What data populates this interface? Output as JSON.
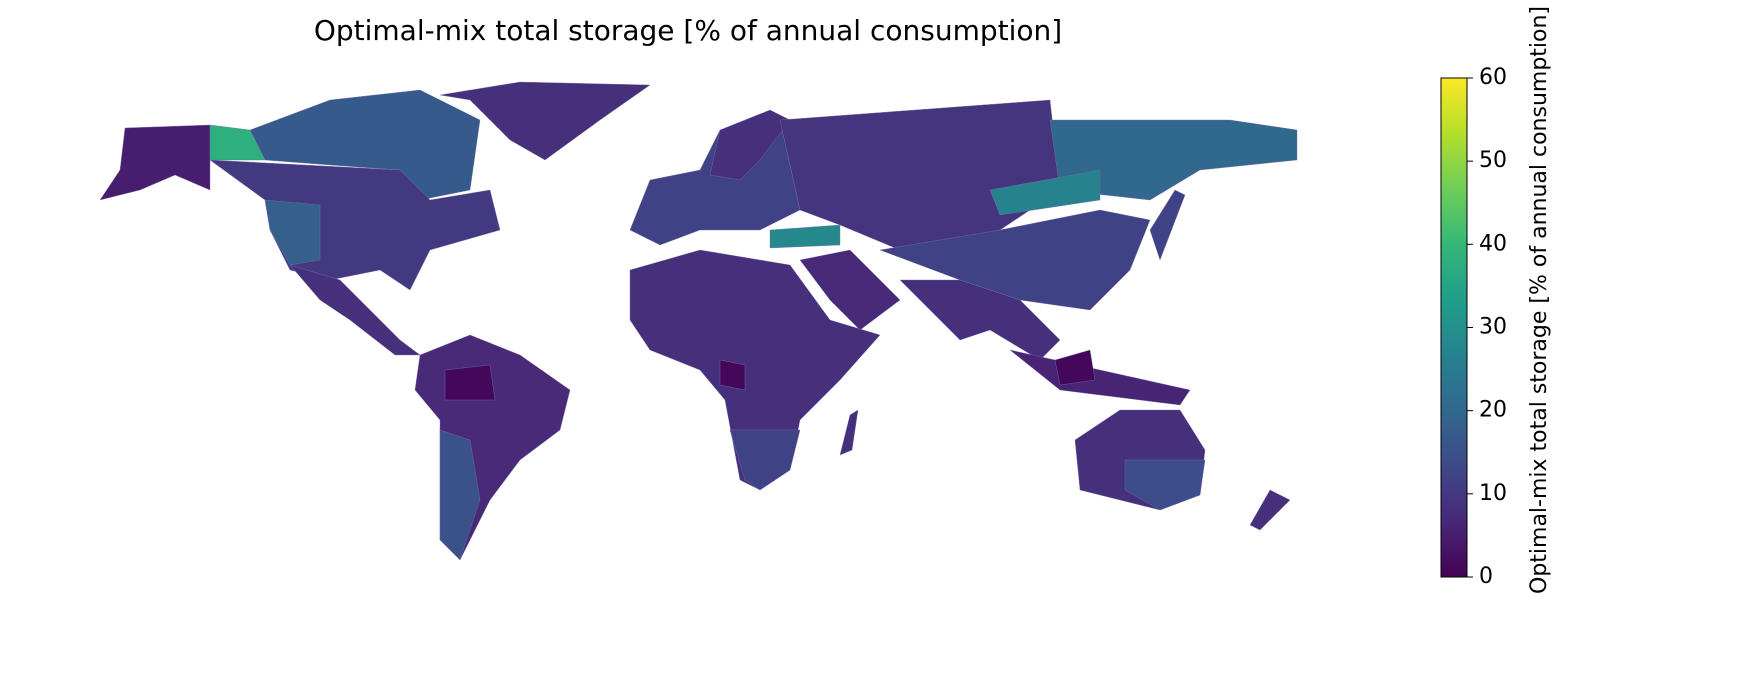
{
  "chart_data": {
    "type": "choropleth",
    "title": "Optimal-mix total storage [% of annual consumption]",
    "colorbar": {
      "label": "Optimal-mix total storage [% of annual consumption]",
      "lim": [
        0,
        60
      ],
      "ticks": [
        0,
        10,
        20,
        30,
        40,
        50,
        60
      ],
      "colormap": "viridis"
    },
    "values": [
      5,
      38,
      17,
      10,
      18,
      8,
      8,
      7,
      1,
      15,
      12,
      8,
      8,
      1,
      12,
      8,
      7,
      28,
      9,
      20,
      27,
      12,
      8,
      6,
      1,
      12,
      8,
      14,
      8
    ]
  }
}
